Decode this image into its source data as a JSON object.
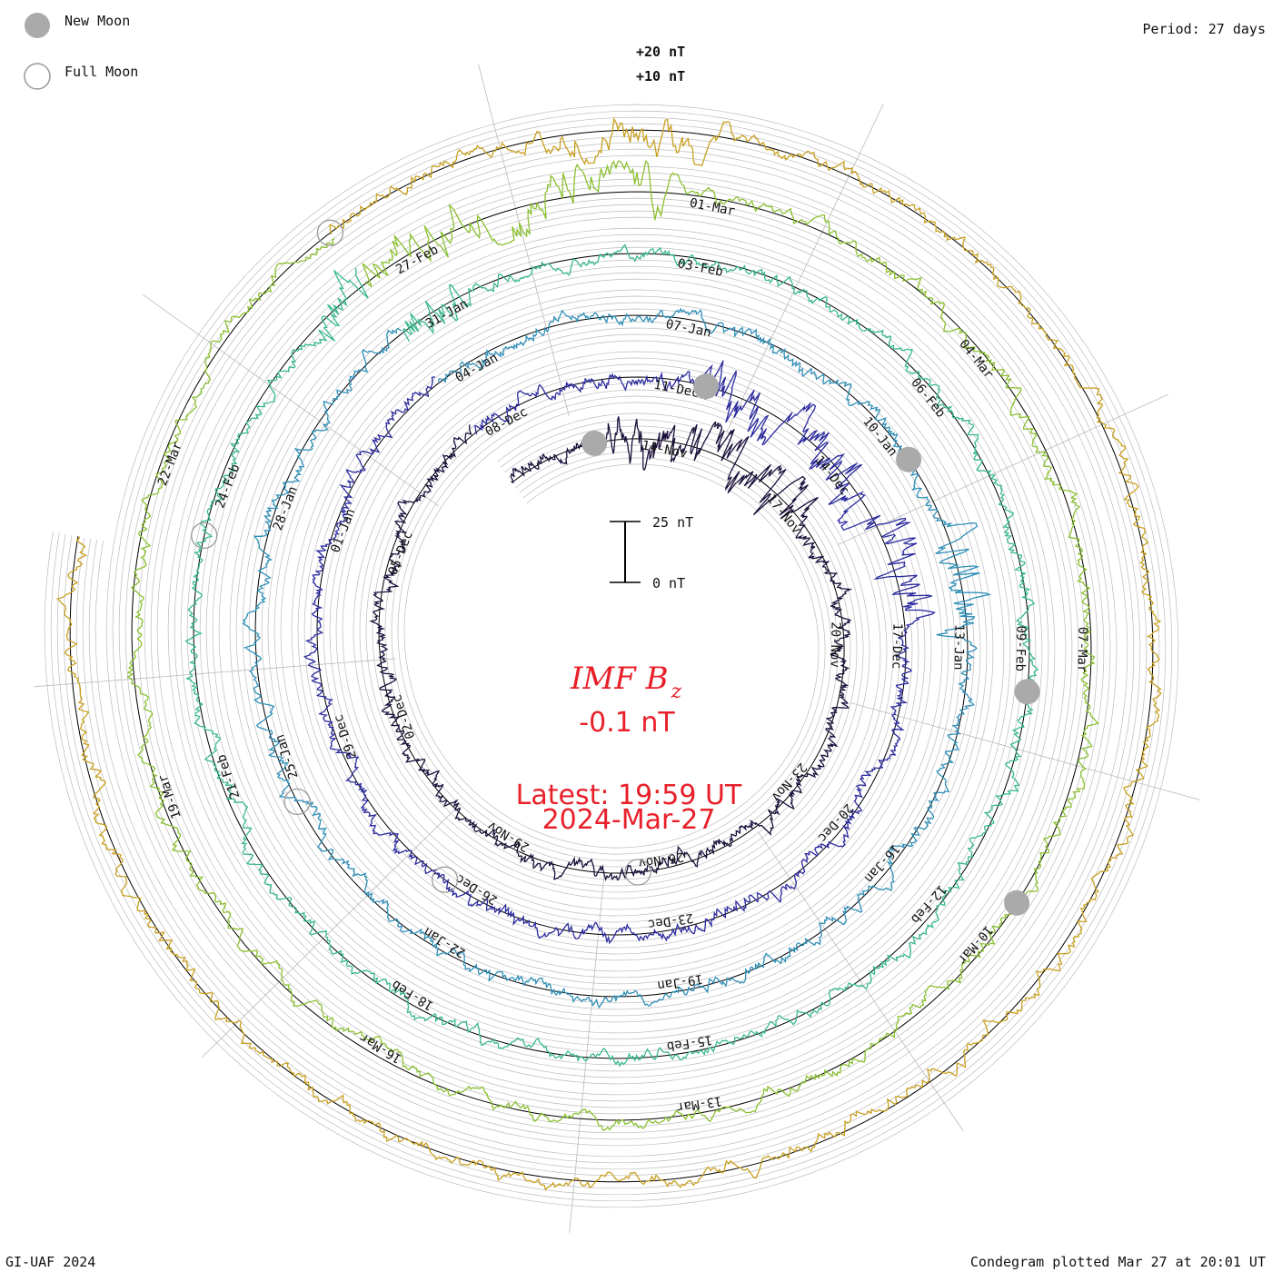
{
  "legend": {
    "new_moon_label": "New Moon",
    "full_moon_label": "Full Moon"
  },
  "period_label": "Period: 27 days",
  "footer_left": "GI-UAF 2024",
  "footer_right": "Condegram plotted Mar 27 at 20:01 UT",
  "scale_labels": {
    "plus20": "+20 nT",
    "plus10": "+10 nT",
    "bar_top": "25 nT",
    "bar_bottom": "0 nT"
  },
  "center": {
    "title_main": "IMF B",
    "title_sub": "z",
    "value": "-0.1 nT",
    "latest": "Latest: 19:59 UT",
    "date": "2024-Mar-27"
  },
  "colors": {
    "text_red": "#e8202a",
    "grid": "#bbbbbb",
    "baseline": "#000000",
    "moon_fill": "#aaaaaa"
  },
  "chart_data": {
    "type": "line",
    "title": "IMF Bz condegram (spiral, 27-day period)",
    "period_days": 27,
    "units": "nT",
    "scale": {
      "bar_nT": [
        0,
        25
      ],
      "ring_labels_nT": [
        10,
        20
      ]
    },
    "current_value_nT": -0.1,
    "latest_time": "19:59 UT",
    "latest_date": "2024-Mar-27",
    "rotations": [
      {
        "name": "rotation-1",
        "color": "#1a0f3a",
        "start": "11-Nov",
        "labels": [
          "14-Nov",
          "17-Nov",
          "20-Nov",
          "23-Nov",
          "26-Nov",
          "29-Nov",
          "02-Dec",
          "05-Dec",
          "08-Dec",
          "11-Dec"
        ]
      },
      {
        "name": "rotation-2",
        "color": "#2b2a9e",
        "start": "08-Dec",
        "labels": [
          "11-Dec",
          "14-Dec",
          "17-Dec",
          "20-Dec",
          "23-Dec",
          "26-Dec",
          "29-Dec",
          "01-Jan",
          "04-Jan",
          "07-Jan"
        ]
      },
      {
        "name": "rotation-3",
        "color": "#2f8fb8",
        "start": "04-Jan",
        "labels": [
          "07-Jan",
          "10-Jan",
          "13-Jan",
          "16-Jan",
          "19-Jan",
          "22-Jan",
          "25-Jan",
          "28-Jan",
          "31-Jan",
          "03-Feb"
        ]
      },
      {
        "name": "rotation-4",
        "color": "#38b890",
        "start": "31-Jan",
        "labels": [
          "03-Feb",
          "06-Feb",
          "09-Feb",
          "12-Feb",
          "15-Feb",
          "18-Feb",
          "21-Feb",
          "24-Feb",
          "27-Feb",
          "01-Mar"
        ]
      },
      {
        "name": "rotation-5",
        "color": "#8ac030",
        "start": "27-Feb",
        "labels": [
          "01-Mar",
          "04-Mar",
          "07-Mar",
          "10-Mar",
          "13-Mar",
          "16-Mar",
          "19-Mar",
          "22-Mar"
        ]
      },
      {
        "name": "rotation-6",
        "color": "#c8a020",
        "start": "22-Mar",
        "labels": []
      }
    ],
    "ring_date_labels": [
      "14-Nov",
      "17-Nov",
      "20-Nov",
      "23-Nov",
      "26-Nov",
      "29-Nov",
      "02-Dec",
      "05-Dec",
      "08-Dec",
      "11-Dec",
      "14-Dec",
      "17-Dec",
      "20-Dec",
      "23-Dec",
      "26-Dec",
      "29-Dec",
      "01-Jan",
      "04-Jan",
      "07-Jan",
      "10-Jan",
      "13-Jan",
      "16-Jan",
      "19-Jan",
      "22-Jan",
      "25-Jan",
      "28-Jan",
      "31-Jan",
      "03-Feb",
      "06-Feb",
      "09-Feb",
      "12-Feb",
      "15-Feb",
      "18-Feb",
      "21-Feb",
      "24-Feb",
      "27-Feb",
      "01-Mar",
      "04-Mar",
      "07-Mar",
      "10-Mar",
      "13-Mar",
      "16-Mar",
      "19-Mar",
      "22-Mar"
    ],
    "new_moons": [
      "13-Nov",
      "12-Dec",
      "11-Jan",
      "10-Feb",
      "10-Mar"
    ],
    "full_moons": [
      "27-Nov",
      "27-Dec",
      "25-Jan",
      "24-Feb",
      "25-Mar"
    ]
  }
}
